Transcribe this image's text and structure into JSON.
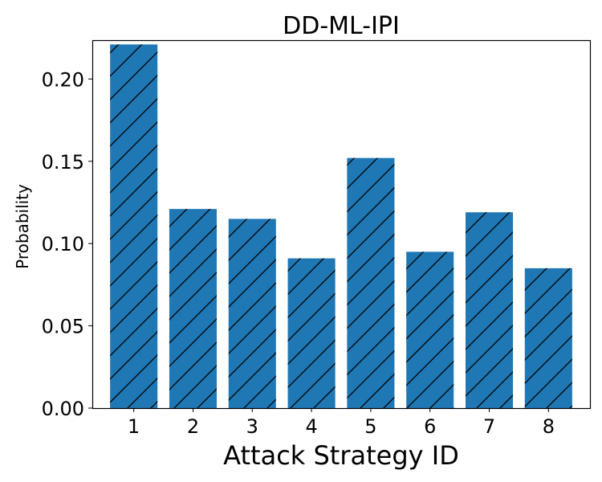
{
  "chart_data": {
    "type": "bar",
    "title": "DD-ML-IPI",
    "xlabel": "Attack Strategy ID",
    "ylabel": "Probability",
    "categories": [
      "1",
      "2",
      "3",
      "4",
      "5",
      "6",
      "7",
      "8"
    ],
    "values": [
      0.221,
      0.121,
      0.115,
      0.091,
      0.152,
      0.095,
      0.119,
      0.085
    ],
    "ylim": [
      0,
      0.2236
    ],
    "yticks": [
      0.0,
      0.05,
      0.1,
      0.15,
      0.2
    ],
    "ytick_labels": [
      "0.00",
      "0.05",
      "0.10",
      "0.15",
      "0.20"
    ],
    "bar_color": "#1f77b4",
    "hatch": "diagonal",
    "grid": false
  }
}
